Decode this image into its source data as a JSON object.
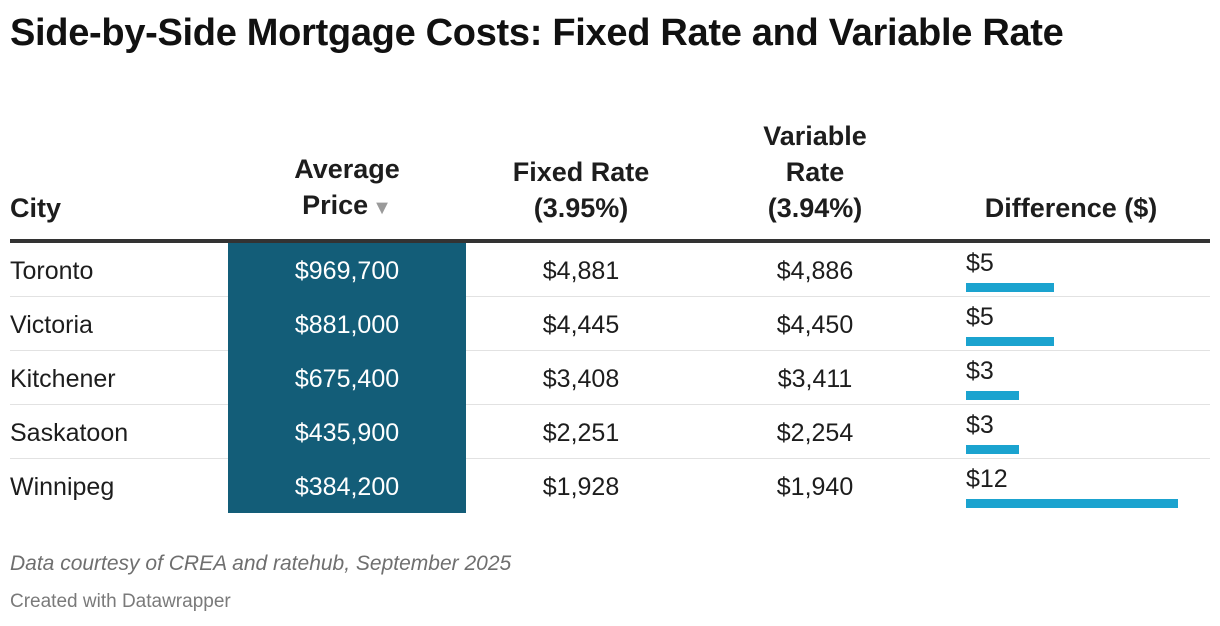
{
  "title": "Side-by-Side Mortgage Costs: Fixed Rate and Variable Rate",
  "columns": {
    "city": "City",
    "price_line1": "Average",
    "price_line2": "Price",
    "fixed_line1": "Fixed Rate",
    "fixed_line2": "(3.95%)",
    "variable_line1": "Variable",
    "variable_line2": "Rate",
    "variable_line3": "(3.94%)",
    "difference": "Difference ($)"
  },
  "sort_icon": "triangle-down-icon",
  "colors": {
    "price_fill": "#135d78",
    "bar": "#1ba3cf",
    "rule": "#333333"
  },
  "chart_data": {
    "type": "table",
    "title": "Side-by-Side Mortgage Costs: Fixed Rate and Variable Rate",
    "sorted_by": "Average Price",
    "sort_direction": "descending",
    "difference_max": 12,
    "rows": [
      {
        "city": "Toronto",
        "price": "$969,700",
        "fixed": "$4,881",
        "variable": "$4,886",
        "difference_label": "$5",
        "difference": 5
      },
      {
        "city": "Victoria",
        "price": "$881,000",
        "fixed": "$4,445",
        "variable": "$4,450",
        "difference_label": "$5",
        "difference": 5
      },
      {
        "city": "Kitchener",
        "price": "$675,400",
        "fixed": "$3,408",
        "variable": "$3,411",
        "difference_label": "$3",
        "difference": 3
      },
      {
        "city": "Saskatoon",
        "price": "$435,900",
        "fixed": "$2,251",
        "variable": "$2,254",
        "difference_label": "$3",
        "difference": 3
      },
      {
        "city": "Winnipeg",
        "price": "$384,200",
        "fixed": "$1,928",
        "variable": "$1,940",
        "difference_label": "$12",
        "difference": 12
      }
    ]
  },
  "footer": {
    "note": "Data courtesy of CREA and ratehub, September 2025",
    "credit": "Created with Datawrapper"
  }
}
